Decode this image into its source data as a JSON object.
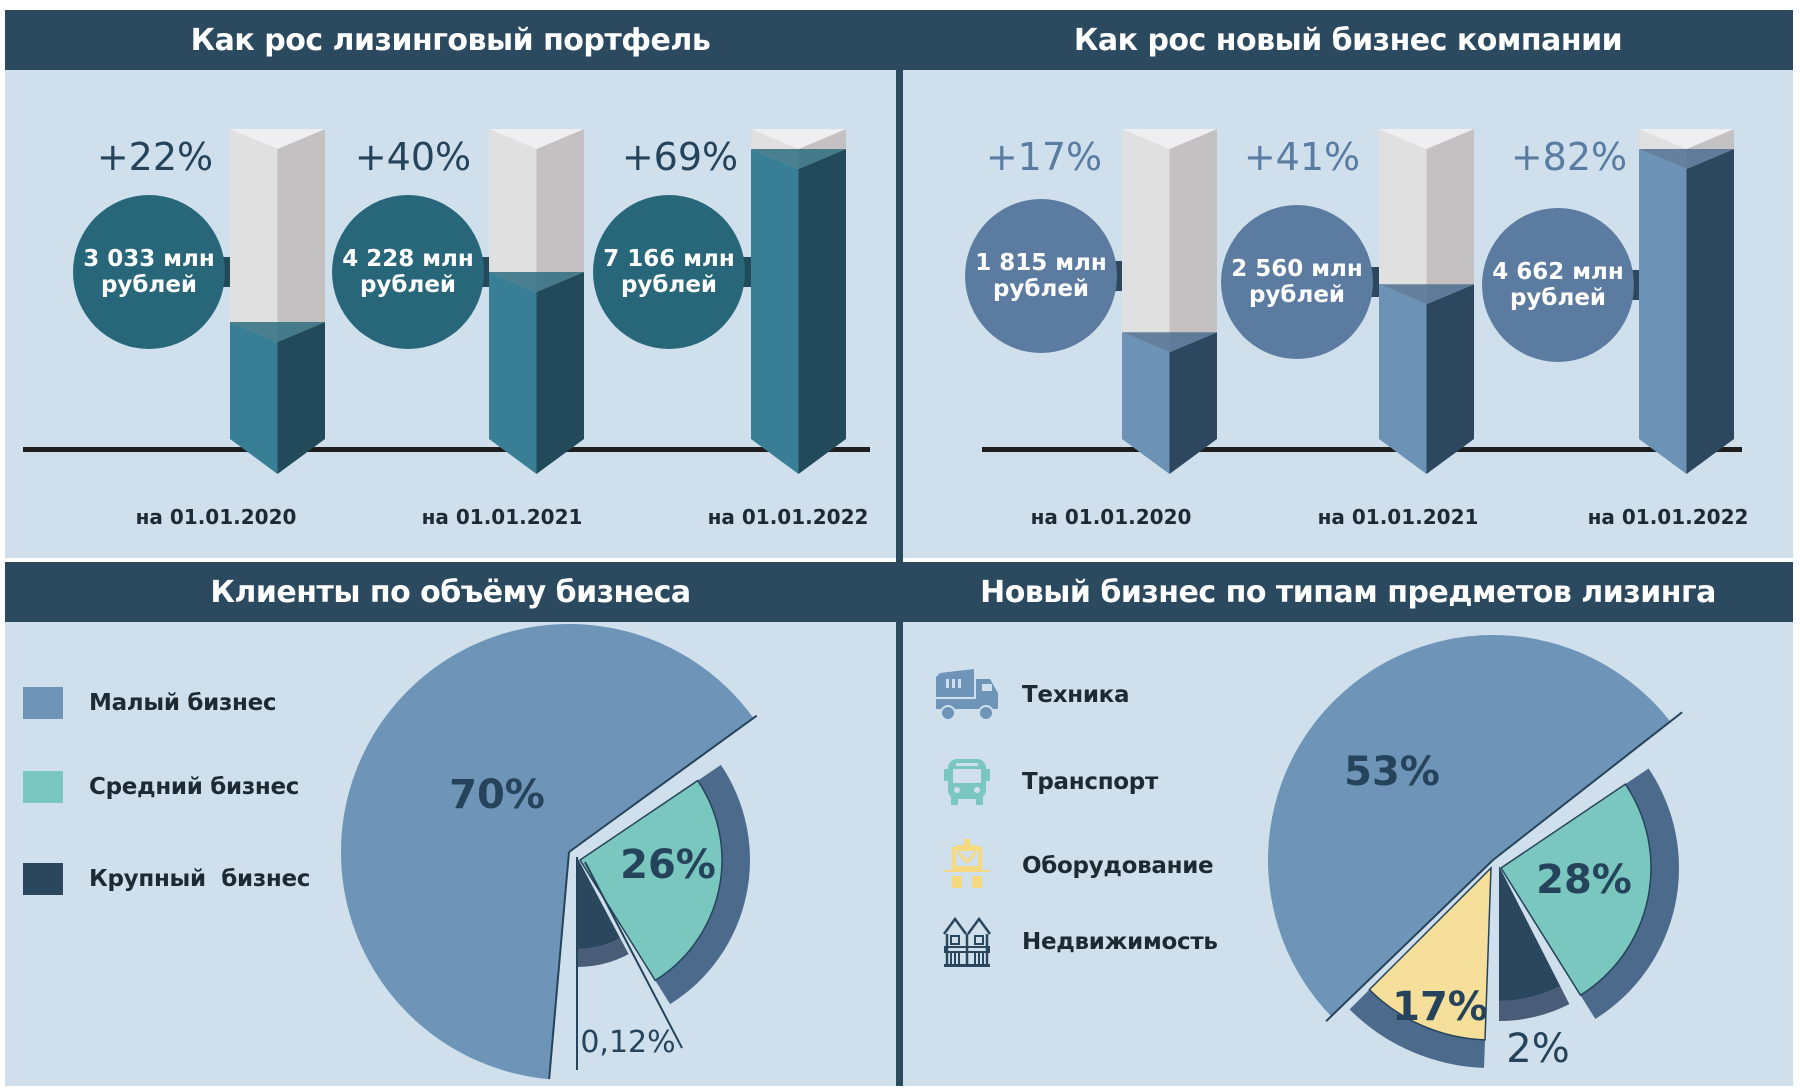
{
  "colors": {
    "header_bg": "#2b4a60",
    "panel_bg": "#cfe0ec",
    "portfolio_circle": "#276779",
    "portfolio_fill_front": "#387f95",
    "portfolio_fill_side": "#224a5b",
    "newbiz_circle": "#5c7ba0",
    "newbiz_fill_front": "#6c93b6",
    "newbiz_fill_side": "#2c475e",
    "bar_empty_front": "#e1e0e1",
    "bar_empty_side": "#c3c1c1",
    "small_business": "#6e95b7",
    "medium_business": "#7ac7c0",
    "large_business": "#2b475e",
    "equipment": "#f5df9a",
    "ring": "#4c6a8c",
    "label_dark": "#25435a",
    "percent_light": "#5a7ca2"
  },
  "chart_data": [
    {
      "type": "bar",
      "title": "Как рос лизинговый портфель",
      "categories": [
        "на 01.01.2020",
        "на 01.01.2021",
        "на 01.01.2022"
      ],
      "values": [
        3033,
        4228,
        7166
      ],
      "value_labels": [
        {
          "line1": "3 033 млн",
          "line2": "рублей"
        },
        {
          "line1": "4 228 млн",
          "line2": "рублей"
        },
        {
          "line1": "7 166 млн",
          "line2": "рублей"
        }
      ],
      "growth_labels": [
        "+22%",
        "+40%",
        "+69%"
      ],
      "unit": "млн рублей"
    },
    {
      "type": "bar",
      "title": "Как рос новый бизнес компании",
      "categories": [
        "на 01.01.2020",
        "на 01.01.2021",
        "на 01.01.2022"
      ],
      "values": [
        1815,
        2560,
        4662
      ],
      "value_labels": [
        {
          "line1": "1 815 млн",
          "line2": "рублей"
        },
        {
          "line1": "2 560 млн",
          "line2": "рублей"
        },
        {
          "line1": "4 662 млн",
          "line2": "рублей"
        }
      ],
      "growth_labels": [
        "+17%",
        "+41%",
        "+82%"
      ],
      "unit": "млн рублей"
    },
    {
      "type": "pie",
      "title": "Клиенты по объёму бизнеса",
      "slices": [
        {
          "name": "Малый бизнес",
          "value": 70,
          "label": "70%"
        },
        {
          "name": "Средний бизнес",
          "value": 26,
          "label": "26%"
        },
        {
          "name": "Крупный  бизнес",
          "value": 0.12,
          "label": "0,12%"
        }
      ]
    },
    {
      "type": "pie",
      "title": "Новый бизнес по типам предметов лизинга",
      "slices": [
        {
          "name": "Техника",
          "value": 53,
          "label": "53%",
          "icon": "dump-truck-icon"
        },
        {
          "name": "Транспорт",
          "value": 28,
          "label": "28%",
          "icon": "bus-icon"
        },
        {
          "name": "Оборудование",
          "value": 17,
          "label": "17%",
          "icon": "crane-equipment-icon"
        },
        {
          "name": "Недвижимость",
          "value": 2,
          "label": "2%",
          "icon": "building-icon"
        }
      ]
    }
  ]
}
